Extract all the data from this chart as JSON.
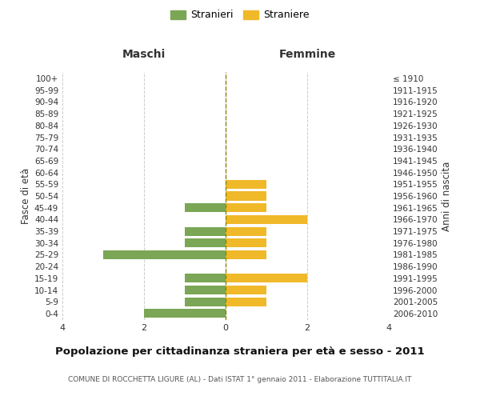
{
  "age_groups": [
    "0-4",
    "5-9",
    "10-14",
    "15-19",
    "20-24",
    "25-29",
    "30-34",
    "35-39",
    "40-44",
    "45-49",
    "50-54",
    "55-59",
    "60-64",
    "65-69",
    "70-74",
    "75-79",
    "80-84",
    "85-89",
    "90-94",
    "95-99",
    "100+"
  ],
  "birth_years": [
    "2006-2010",
    "2001-2005",
    "1996-2000",
    "1991-1995",
    "1986-1990",
    "1981-1985",
    "1976-1980",
    "1971-1975",
    "1966-1970",
    "1961-1965",
    "1956-1960",
    "1951-1955",
    "1946-1950",
    "1941-1945",
    "1936-1940",
    "1931-1935",
    "1926-1930",
    "1921-1925",
    "1916-1920",
    "1911-1915",
    "≤ 1910"
  ],
  "maschi": [
    2,
    1,
    1,
    1,
    0,
    3,
    1,
    1,
    0,
    1,
    0,
    0,
    0,
    0,
    0,
    0,
    0,
    0,
    0,
    0,
    0
  ],
  "femmine": [
    0,
    1,
    1,
    2,
    0,
    1,
    1,
    1,
    2,
    1,
    1,
    1,
    0,
    0,
    0,
    0,
    0,
    0,
    0,
    0,
    0
  ],
  "color_maschi": "#7aa655",
  "color_femmine": "#f0b92a",
  "xlim": 4,
  "header_maschi": "Maschi",
  "header_femmine": "Femmine",
  "ylabel_left": "Fasce di età",
  "ylabel_right": "Anni di nascita",
  "title": "Popolazione per cittadinanza straniera per età e sesso - 2011",
  "subtitle": "COMUNE DI ROCCHETTA LIGURE (AL) - Dati ISTAT 1° gennaio 2011 - Elaborazione TUTTITALIA.IT",
  "legend_stranieri": "Stranieri",
  "legend_straniere": "Straniere",
  "bg_color": "#ffffff",
  "grid_color": "#cccccc",
  "bar_height": 0.75
}
